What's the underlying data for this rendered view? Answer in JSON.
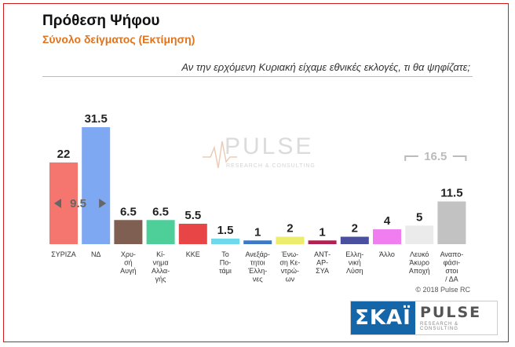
{
  "header": {
    "title": "Πρόθεση Ψήφου",
    "subtitle": "Σύνολο δείγματος   (Εκτίμηση)",
    "question": "Αν την ερχόμενη Κυριακή είχαμε εθνικές εκλογές, τι θα ψηφίζατε;"
  },
  "watermark": {
    "name": "PULSE",
    "sub": "RESEARCH & CONSULTING"
  },
  "annotations": {
    "gap_label": "9.5",
    "bracket_label": "16.5"
  },
  "footer": {
    "copyright": "© 2018 Pulse RC"
  },
  "logos": {
    "skai": "ΣΚΑΪ",
    "pulse": "PULSE",
    "pulse_sub": "RESEARCH & CONSULTING"
  },
  "chart_data": {
    "type": "bar",
    "title": "Πρόθεση Ψήφου",
    "subtitle": "Σύνολο δείγματος   (Εκτίμηση)",
    "xlabel": "",
    "ylabel": "",
    "ylim": [
      0,
      31.5
    ],
    "grid": false,
    "legend": "none",
    "categories": [
      "ΣΥΡΙΖΑ",
      "ΝΔ",
      "Χρυ-σή Αυγή",
      "Κί-νημα Αλλα-γής",
      "ΚΚΕ",
      "Το Πο-τάμι",
      "Ανεξάρ-τητοι Έλλη-νες",
      "Ένω-ση Κε-ντρώ-ων",
      "ΑΝΤ-ΑР-ΣΥΑ",
      "Ελλη-νική Λύση",
      "Άλλο",
      "Λευκό Άκυρο Αποχή",
      "Αναπο-φάσι-στοι / ΔΑ"
    ],
    "category_lines": [
      [
        "ΣΥΡΙΖΑ"
      ],
      [
        "ΝΔ"
      ],
      [
        "Χρυ-",
        "σή",
        "Αυγή"
      ],
      [
        "Κί-",
        "νημα",
        "Αλλα-",
        "γής"
      ],
      [
        "ΚΚΕ"
      ],
      [
        "Το",
        "Πο-",
        "τάμι"
      ],
      [
        "Ανεξάρ-",
        "τητοι",
        "Έλλη-",
        "νες"
      ],
      [
        "Ένω-",
        "ση Κε-",
        "ντρώ-",
        "ων"
      ],
      [
        "ΑΝΤ-",
        "ΑΡ-",
        "ΣΥΑ"
      ],
      [
        "Ελλη-",
        "νική",
        "Λύση"
      ],
      [
        "Άλλο"
      ],
      [
        "Λευκό",
        "Άκυρο",
        "Αποχή"
      ],
      [
        "Αναπο-",
        "φάσι-",
        "στοι",
        "/ ΔΑ"
      ]
    ],
    "values": [
      22,
      31.5,
      6.5,
      6.5,
      5.5,
      1.5,
      1,
      2,
      1,
      2,
      4,
      5,
      11.5
    ],
    "value_labels": [
      "22",
      "31.5",
      "6.5",
      "6.5",
      "5.5",
      "1.5",
      "1",
      "2",
      "1",
      "2",
      "4",
      "5",
      "11.5"
    ],
    "colors": [
      "#f4766f",
      "#7fa8f2",
      "#7f5f52",
      "#4ecf9a",
      "#e84646",
      "#6ed8ec",
      "#3d79c8",
      "#ecec6e",
      "#b22050",
      "#4a4f9e",
      "#f07ef0",
      "#ebebeb",
      "#c2c2c2"
    ],
    "annotations": [
      {
        "type": "gap",
        "between": [
          "ΣΥΡΙΖΑ",
          "ΝΔ"
        ],
        "label": "9.5"
      },
      {
        "type": "bracket",
        "over": [
          "Λευκό Άκυρο Αποχή",
          "Αναπο-φάσι-στοι / ΔΑ"
        ],
        "label": "16.5"
      }
    ]
  }
}
